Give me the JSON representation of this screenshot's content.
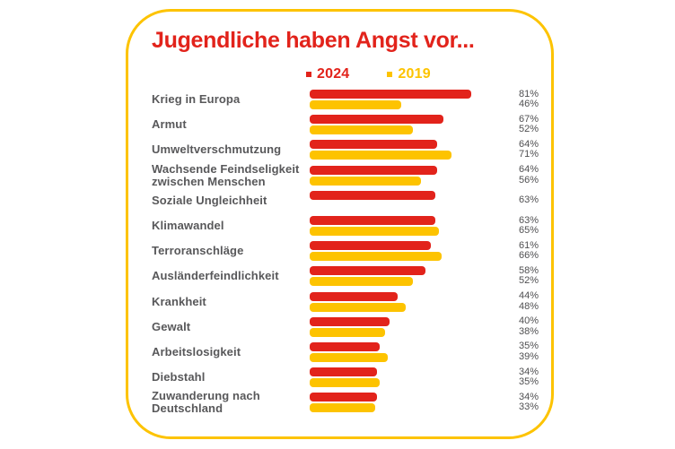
{
  "chart": {
    "title": "Jugendliche haben Angst vor...",
    "accent_red": "#e2231b",
    "accent_yellow": "#fdc300",
    "card_border_color": "#fdc300",
    "text_color": "#58585a"
  },
  "chart_data": {
    "type": "bar",
    "orientation": "horizontal",
    "title": "Jugendliche haben Angst vor...",
    "legend_position": "top",
    "value_suffix": "%",
    "xlim": [
      0,
      100
    ],
    "grid": false,
    "categories": [
      "Krieg in Europa",
      "Armut",
      "Umweltverschmutzung",
      "Wachsende Feindseligkeit zwischen Menschen",
      "Soziale Ungleichheit",
      "Klimawandel",
      "Terroranschläge",
      "Ausländerfeindlichkeit",
      "Krankheit",
      "Gewalt",
      "Arbeitslosigkeit",
      "Diebstahl",
      "Zuwanderung nach Deutschland"
    ],
    "series": [
      {
        "name": "2024",
        "color": "#e2231b",
        "values": [
          81,
          67,
          64,
          64,
          63,
          63,
          61,
          58,
          44,
          40,
          35,
          34,
          34
        ]
      },
      {
        "name": "2019",
        "color": "#fdc300",
        "values": [
          46,
          52,
          71,
          56,
          null,
          65,
          66,
          52,
          48,
          38,
          39,
          35,
          33
        ]
      }
    ]
  }
}
